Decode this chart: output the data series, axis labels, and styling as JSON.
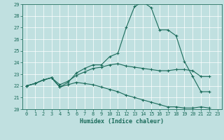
{
  "xlabel": "Humidex (Indice chaleur)",
  "ylabel": "",
  "xlim": [
    -0.5,
    23.5
  ],
  "ylim": [
    20,
    29
  ],
  "yticks": [
    20,
    21,
    22,
    23,
    24,
    25,
    26,
    27,
    28,
    29
  ],
  "xticks": [
    0,
    1,
    2,
    3,
    4,
    5,
    6,
    7,
    8,
    9,
    10,
    11,
    12,
    13,
    14,
    15,
    16,
    17,
    18,
    19,
    20,
    21,
    22,
    23
  ],
  "bg_color": "#c0e0e0",
  "grid_color": "#ffffff",
  "line_color": "#1a6b5a",
  "line1": [
    22.0,
    22.2,
    22.5,
    22.7,
    21.9,
    22.3,
    23.1,
    23.5,
    23.8,
    23.8,
    24.5,
    24.8,
    27.0,
    28.8,
    29.2,
    28.7,
    26.8,
    26.8,
    26.3,
    24.1,
    22.8,
    21.5,
    21.5,
    null
  ],
  "line2": [
    22.0,
    22.2,
    22.5,
    22.7,
    22.1,
    22.4,
    22.9,
    23.2,
    23.5,
    23.6,
    23.8,
    23.9,
    23.7,
    23.6,
    23.5,
    23.4,
    23.3,
    23.3,
    23.4,
    23.4,
    23.3,
    22.8,
    22.8,
    null
  ],
  "line3": [
    22.0,
    22.2,
    22.5,
    22.7,
    21.9,
    22.1,
    22.3,
    22.2,
    22.1,
    21.9,
    21.7,
    21.5,
    21.2,
    21.0,
    20.8,
    20.6,
    20.4,
    20.2,
    20.2,
    20.1,
    20.1,
    20.2,
    20.1,
    null
  ]
}
